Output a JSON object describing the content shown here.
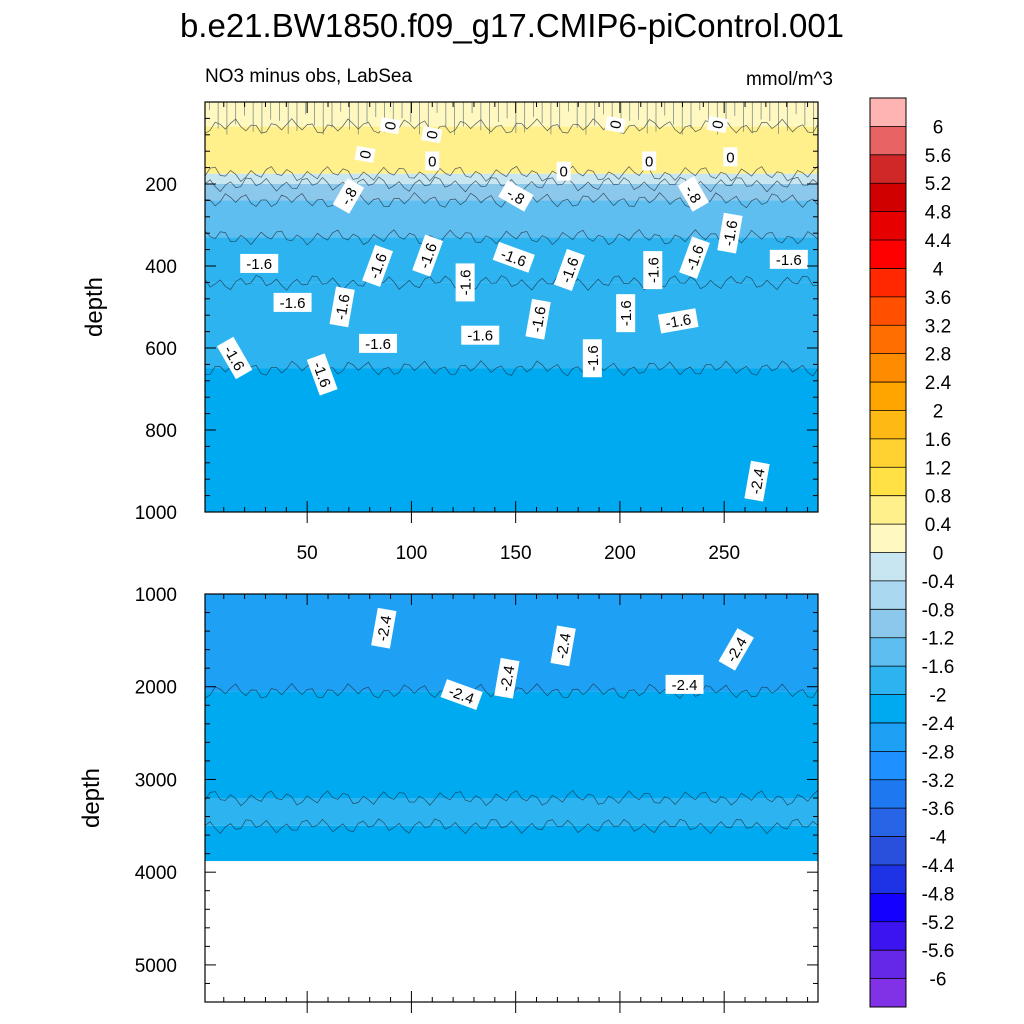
{
  "title": "b.e21.BW1850.f09_g17.CMIP6-piControl.001",
  "chart_data": [
    {
      "type": "contour",
      "panel": "upper",
      "subtitle_left": "NO3 minus obs, LabSea",
      "subtitle_right": "mmol/m^3",
      "ylabel": "depth",
      "xlabel": "",
      "xlim": [
        1,
        295
      ],
      "ylim": [
        0,
        1000
      ],
      "y_reversed": true,
      "xticks": [
        50,
        100,
        150,
        200,
        250
      ],
      "xtick_labels": [
        "50",
        "100",
        "150",
        "200",
        "250"
      ],
      "yticks": [
        200,
        400,
        600,
        800,
        1000
      ],
      "ytick_labels": [
        "200",
        "400",
        "600",
        "800",
        "1000"
      ],
      "depth_bands": [
        {
          "from": 0,
          "to": 60,
          "value": 0.2
        },
        {
          "from": 60,
          "to": 175,
          "value": 0.4
        },
        {
          "from": 175,
          "to": 200,
          "value": -0.2
        },
        {
          "from": 200,
          "to": 240,
          "value": -1.0
        },
        {
          "from": 240,
          "to": 330,
          "value": -1.4
        },
        {
          "from": 330,
          "to": 440,
          "value": -1.8
        },
        {
          "from": 440,
          "to": 650,
          "value": -1.8
        },
        {
          "from": 650,
          "to": 1000,
          "value": -2.2
        }
      ],
      "contour_labels": [
        {
          "x": 90,
          "depth": 58,
          "text": "0",
          "angle": 80
        },
        {
          "x": 110,
          "depth": 80,
          "text": "0",
          "angle": 80
        },
        {
          "x": 78,
          "depth": 128,
          "text": "0",
          "angle": 80
        },
        {
          "x": 110,
          "depth": 145,
          "text": "0",
          "angle": 0
        },
        {
          "x": 173,
          "depth": 170,
          "text": "0",
          "angle": 0
        },
        {
          "x": 198,
          "depth": 55,
          "text": "0",
          "angle": 80
        },
        {
          "x": 214,
          "depth": 145,
          "text": "0",
          "angle": 0
        },
        {
          "x": 247,
          "depth": 55,
          "text": "0",
          "angle": 80
        },
        {
          "x": 253,
          "depth": 135,
          "text": "0",
          "angle": 0
        },
        {
          "x": 70,
          "depth": 230,
          "text": "-.8",
          "angle": 60
        },
        {
          "x": 150,
          "depth": 230,
          "text": "-.8",
          "angle": -30
        },
        {
          "x": 235,
          "depth": 225,
          "text": "-.8",
          "angle": -60
        },
        {
          "x": 27,
          "depth": 395,
          "text": "-1.6",
          "angle": 0
        },
        {
          "x": 43,
          "depth": 490,
          "text": "-1.6",
          "angle": 0
        },
        {
          "x": 15,
          "depth": 625,
          "text": "-1.6",
          "angle": -60
        },
        {
          "x": 67,
          "depth": 500,
          "text": "-1.6",
          "angle": 80
        },
        {
          "x": 57,
          "depth": 665,
          "text": "-1.6",
          "angle": -70
        },
        {
          "x": 84,
          "depth": 590,
          "text": "-1.6",
          "angle": 0
        },
        {
          "x": 84,
          "depth": 400,
          "text": "-1.6",
          "angle": 70
        },
        {
          "x": 108,
          "depth": 375,
          "text": "-1.6",
          "angle": 70
        },
        {
          "x": 126,
          "depth": 440,
          "text": "-1.6",
          "angle": 90
        },
        {
          "x": 133,
          "depth": 570,
          "text": "-1.6",
          "angle": 0
        },
        {
          "x": 149,
          "depth": 380,
          "text": "-1.6",
          "angle": -20
        },
        {
          "x": 161,
          "depth": 530,
          "text": "-1.6",
          "angle": 80
        },
        {
          "x": 176,
          "depth": 410,
          "text": "-1.6",
          "angle": 70
        },
        {
          "x": 187,
          "depth": 625,
          "text": "-1.6",
          "angle": 90
        },
        {
          "x": 203,
          "depth": 515,
          "text": "-1.6",
          "angle": 90
        },
        {
          "x": 216,
          "depth": 410,
          "text": "-1.6",
          "angle": 90
        },
        {
          "x": 228,
          "depth": 535,
          "text": "-1.6",
          "angle": 10
        },
        {
          "x": 236,
          "depth": 380,
          "text": "-1.6",
          "angle": 70
        },
        {
          "x": 253,
          "depth": 320,
          "text": "-1.6",
          "angle": 80
        },
        {
          "x": 281,
          "depth": 385,
          "text": "-1.6",
          "angle": 0
        },
        {
          "x": 266,
          "depth": 925,
          "text": "-2.4",
          "angle": 80
        }
      ]
    },
    {
      "type": "contour",
      "panel": "lower",
      "ylabel": "depth",
      "xlabel": "",
      "xlim": [
        1,
        295
      ],
      "ylim": [
        1000,
        5400
      ],
      "y_reversed": true,
      "yticks": [
        1000,
        2000,
        3000,
        4000,
        5000
      ],
      "ytick_labels": [
        "1000",
        "2000",
        "3000",
        "4000",
        "5000"
      ],
      "bottom_depth": 3880,
      "depth_bands": [
        {
          "from": 1000,
          "to": 2050,
          "value": -2.6
        },
        {
          "from": 2050,
          "to": 3200,
          "value": -2.2
        },
        {
          "from": 3200,
          "to": 3500,
          "value": -1.8
        },
        {
          "from": 3500,
          "to": 3880,
          "value": -2.2
        }
      ],
      "contour_labels": [
        {
          "x": 87,
          "depth": 1370,
          "text": "-2.4",
          "angle": 80
        },
        {
          "x": 124,
          "depth": 2090,
          "text": "-2.4",
          "angle": -20
        },
        {
          "x": 146,
          "depth": 1910,
          "text": "-2.4",
          "angle": 80
        },
        {
          "x": 173,
          "depth": 1560,
          "text": "-2.4",
          "angle": 80
        },
        {
          "x": 256,
          "depth": 1600,
          "text": "-2.4",
          "angle": 60
        },
        {
          "x": 231,
          "depth": 1980,
          "text": "-2.4",
          "angle": 0
        }
      ]
    }
  ],
  "colorbar": {
    "labels": [
      "6",
      "5.6",
      "5.2",
      "4.8",
      "4.4",
      "4",
      "3.6",
      "3.2",
      "2.8",
      "2.4",
      "2",
      "1.6",
      "1.2",
      "0.8",
      "0.4",
      "0",
      "-0.4",
      "-0.8",
      "-1.2",
      "-1.6",
      "-2",
      "-2.4",
      "-2.8",
      "-3.2",
      "-3.6",
      "-4",
      "-4.4",
      "-4.8",
      "-5.2",
      "-5.6",
      "-6"
    ],
    "colors": [
      "#FFB4B4",
      "#E86464",
      "#D02828",
      "#D00000",
      "#E60000",
      "#FF0000",
      "#FF2800",
      "#FF5000",
      "#FF6E00",
      "#FF8C00",
      "#FFA500",
      "#FFB914",
      "#FFD232",
      "#FFE146",
      "#FFF08C",
      "#FFF8C0",
      "#C8E6F2",
      "#AAD8F0",
      "#8CC8EB",
      "#5FBEF0",
      "#2DB4F0",
      "#00AAF0",
      "#1EA0F5",
      "#1E90FF",
      "#1E78F0",
      "#2864E6",
      "#2850DC",
      "#1E32E6",
      "#1400FF",
      "#3C14F0",
      "#6428E6",
      "#8232E6"
    ]
  }
}
